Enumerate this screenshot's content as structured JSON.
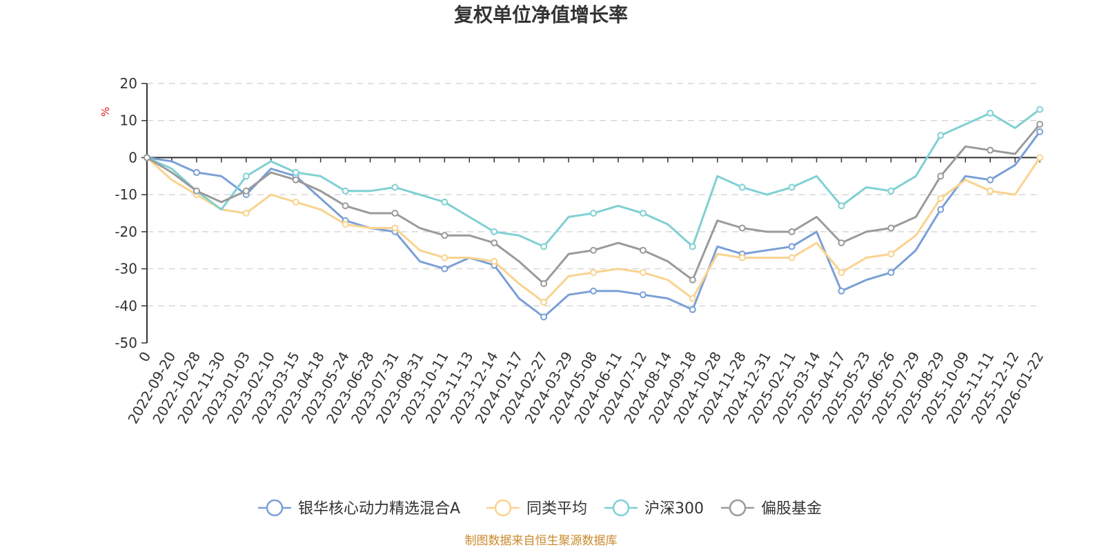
{
  "colors": {
    "fund": "#7a9fd6",
    "peer": "#f9d38e",
    "hs300": "#7fd0d3",
    "equity": "#9a9a9a",
    "footer": "#c98a2e",
    "unit": "#e01b1b"
  },
  "footer": "制图数据来自恒生聚源数据库",
  "chart_data": {
    "type": "line",
    "title": "复权单位净值增长率",
    "ylabel": "%",
    "xlabel": "",
    "ylim": [
      -50,
      20
    ],
    "yticks": [
      "20",
      "10",
      "0",
      "-10",
      "-20",
      "-30",
      "-40",
      "-50"
    ],
    "x": [
      "0",
      "2022-09-20",
      "2022-10-28",
      "2022-11-30",
      "2023-01-03",
      "2023-02-10",
      "2023-03-15",
      "2023-04-18",
      "2023-05-24",
      "2023-06-28",
      "2023-07-31",
      "2023-08-31",
      "2023-10-11",
      "2023-11-13",
      "2023-12-14",
      "2024-01-17",
      "2024-02-27",
      "2024-03-29",
      "2024-05-08",
      "2024-06-11",
      "2024-07-12",
      "2024-08-14",
      "2024-09-18",
      "2024-10-28",
      "2024-11-28",
      "2024-12-31",
      "2025-02-11",
      "2025-03-14",
      "2025-04-17",
      "2025-05-23",
      "2025-06-26",
      "2025-07-29",
      "2025-08-29",
      "2025-10-09",
      "2025-11-11",
      "2025-12-12",
      "2026-01-22"
    ],
    "grid": true,
    "legend_position": "bottom-center",
    "series": [
      {
        "name": "银华核心动力精选混合A",
        "values": [
          0,
          -1,
          -4,
          -5,
          -10,
          -3,
          -5,
          -11,
          -17,
          -19,
          -20,
          -28,
          -30,
          -27,
          -29,
          -38,
          -43,
          -37,
          -36,
          -36,
          -37,
          -38,
          -41,
          -24,
          -26,
          -25,
          -24,
          -20,
          -36,
          -33,
          -31,
          -25,
          -14,
          -5,
          -6,
          -2,
          7
        ]
      },
      {
        "name": "同类平均",
        "values": [
          0,
          -6,
          -10,
          -14,
          -15,
          -10,
          -12,
          -14,
          -18,
          -19,
          -19,
          -25,
          -27,
          -27,
          -28,
          -34,
          -39,
          -32,
          -31,
          -30,
          -31,
          -33,
          -38,
          -26,
          -27,
          -27,
          -27,
          -23,
          -31,
          -27,
          -26,
          -21,
          -11,
          -6,
          -9,
          -10,
          0
        ]
      },
      {
        "name": "沪深300",
        "values": [
          0,
          -3,
          -9,
          -14,
          -5,
          -1,
          -4,
          -5,
          -9,
          -9,
          -8,
          -10,
          -12,
          -16,
          -20,
          -21,
          -24,
          -16,
          -15,
          -13,
          -15,
          -18,
          -24,
          -5,
          -8,
          -10,
          -8,
          -5,
          -13,
          -8,
          -9,
          -5,
          6,
          9,
          12,
          8,
          13
        ]
      },
      {
        "name": "偏股基金",
        "values": [
          0,
          -4,
          -9,
          -12,
          -9,
          -4,
          -6,
          -9,
          -13,
          -15,
          -15,
          -19,
          -21,
          -21,
          -23,
          -28,
          -34,
          -26,
          -25,
          -23,
          -25,
          -28,
          -33,
          -17,
          -19,
          -20,
          -20,
          -16,
          -23,
          -20,
          -19,
          -16,
          -5,
          3,
          2,
          1,
          9
        ]
      }
    ]
  }
}
